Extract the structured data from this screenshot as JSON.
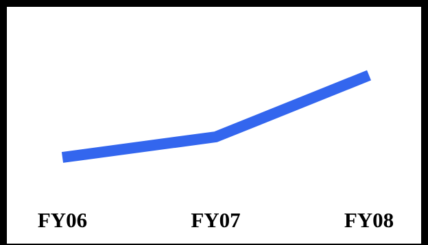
{
  "chart_data": {
    "type": "line",
    "categories": [
      "FY06",
      "FY07",
      "FY08"
    ],
    "series": [
      {
        "values": [
          1.0,
          1.25,
          2.0
        ],
        "color": "#3366ee"
      }
    ],
    "ylim": [
      0,
      2.5
    ],
    "grid": false,
    "legend": "none"
  }
}
